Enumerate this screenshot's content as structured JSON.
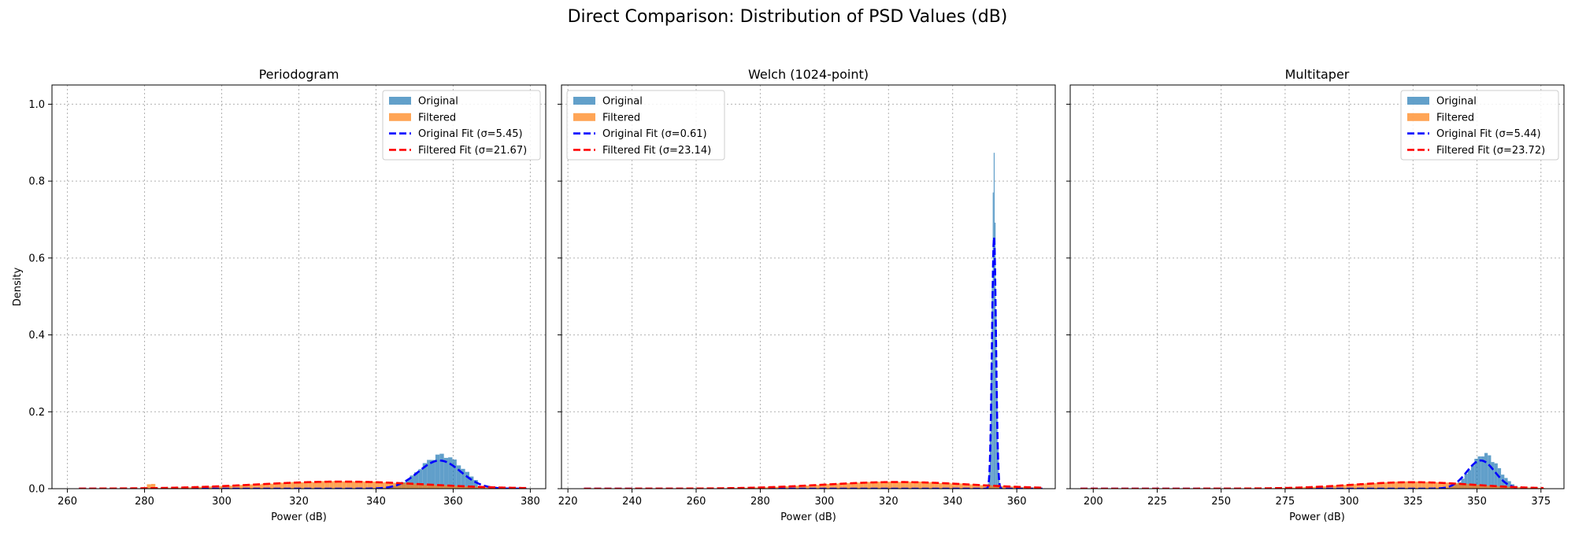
{
  "figure": {
    "suptitle": "Direct Comparison: Distribution of PSD Values (dB)"
  },
  "chart_data": [
    {
      "type": "histogram",
      "title": "Periodogram",
      "xlabel": "Power (dB)",
      "ylabel": "Density",
      "xlim": [
        256,
        384
      ],
      "ylim": [
        0,
        1.05
      ],
      "xticks": [
        260,
        280,
        300,
        320,
        340,
        360,
        380
      ],
      "yticks": [
        0.0,
        0.2,
        0.4,
        0.6,
        0.8,
        1.0
      ],
      "grid": true,
      "legend_position": "upper right",
      "series": [
        {
          "name": "Original",
          "kind": "histogram",
          "color": "#1f77b4",
          "alpha": 0.7,
          "bin_width": 1.1,
          "range": [
            340,
            366
          ],
          "peak_x": 357,
          "peak_density": 0.086,
          "sigma": 5.45
        },
        {
          "name": "Filtered",
          "kind": "histogram",
          "color": "#ff7f0e",
          "alpha": 0.7,
          "bin_width": 1.1,
          "range": [
            263,
            379
          ],
          "peak_x": 331,
          "peak_density": 0.019,
          "sigma": 21.67,
          "spike_x": 282,
          "spike_density": 0.012
        },
        {
          "name": "Original Fit (σ=5.45)",
          "kind": "normal_fit",
          "color": "#0000ff",
          "dash": true,
          "mean": 356.5,
          "sigma": 5.45
        },
        {
          "name": "Filtered Fit (σ=21.67)",
          "kind": "normal_fit",
          "color": "#ff0000",
          "dash": true,
          "mean": 331,
          "sigma": 21.67
        }
      ]
    },
    {
      "type": "histogram",
      "title": "Welch (1024-point)",
      "xlabel": "Power (dB)",
      "ylabel": "",
      "xlim": [
        218,
        372
      ],
      "ylim": [
        0,
        1.05
      ],
      "xticks": [
        220,
        240,
        260,
        280,
        300,
        320,
        340,
        360
      ],
      "yticks": [
        0.0,
        0.2,
        0.4,
        0.6,
        0.8,
        1.0
      ],
      "grid": true,
      "legend_position": "upper left",
      "series": [
        {
          "name": "Original",
          "kind": "histogram",
          "color": "#1f77b4",
          "alpha": 0.7,
          "bin_width": 0.3,
          "range": [
            351,
            355
          ],
          "peak_x": 352.9,
          "peak_density": 0.82,
          "sigma": 0.61
        },
        {
          "name": "Filtered",
          "kind": "histogram",
          "color": "#ff7f0e",
          "alpha": 0.7,
          "bin_width": 1.3,
          "range": [
            225,
            368
          ],
          "peak_x": 323,
          "peak_density": 0.018,
          "sigma": 23.14
        },
        {
          "name": "Original Fit (σ=0.61)",
          "kind": "normal_fit",
          "color": "#0000ff",
          "dash": true,
          "mean": 352.9,
          "sigma": 0.61
        },
        {
          "name": "Filtered Fit (σ=23.14)",
          "kind": "normal_fit",
          "color": "#ff0000",
          "dash": true,
          "mean": 323,
          "sigma": 23.14
        }
      ]
    },
    {
      "type": "histogram",
      "title": "Multitaper",
      "xlabel": "Power (dB)",
      "ylabel": "",
      "xlim": [
        191,
        384
      ],
      "ylim": [
        0,
        1.05
      ],
      "xticks": [
        200,
        225,
        250,
        275,
        300,
        325,
        350,
        375
      ],
      "yticks": [
        0.0,
        0.2,
        0.4,
        0.6,
        0.8,
        1.0
      ],
      "grid": true,
      "legend_position": "upper right",
      "series": [
        {
          "name": "Original",
          "kind": "histogram",
          "color": "#1f77b4",
          "alpha": 0.7,
          "bin_width": 1.3,
          "range": [
            336,
            366
          ],
          "peak_x": 353,
          "peak_density": 0.088,
          "sigma": 5.44
        },
        {
          "name": "Filtered",
          "kind": "histogram",
          "color": "#ff7f0e",
          "alpha": 0.7,
          "bin_width": 1.5,
          "range": [
            195,
            376
          ],
          "peak_x": 325,
          "peak_density": 0.018,
          "sigma": 23.72
        },
        {
          "name": "Original Fit (σ=5.44)",
          "kind": "normal_fit",
          "color": "#0000ff",
          "dash": true,
          "mean": 351.5,
          "sigma": 5.44
        },
        {
          "name": "Filtered Fit (σ=23.72)",
          "kind": "normal_fit",
          "color": "#ff0000",
          "dash": true,
          "mean": 325,
          "sigma": 23.72
        }
      ]
    }
  ]
}
